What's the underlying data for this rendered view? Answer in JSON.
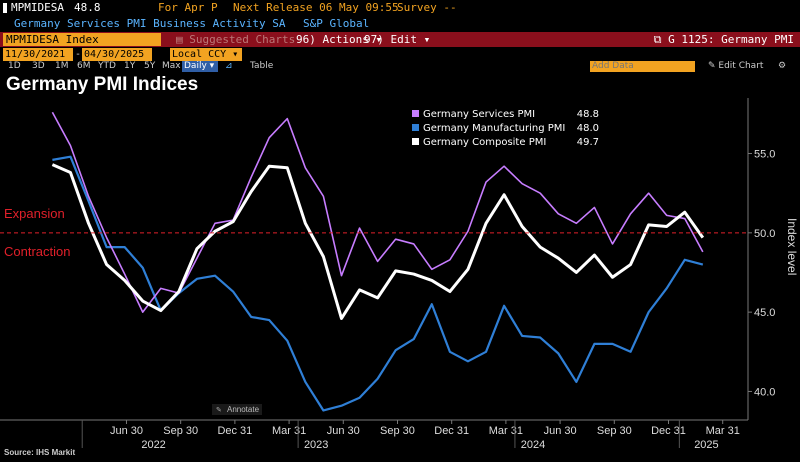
{
  "ticker_line": {
    "ticker": "MPMIDESA",
    "value": "48.8",
    "period": "For Apr P",
    "next_release": "Next Release 06 May 09:55",
    "survey": "Survey --"
  },
  "subtitle": {
    "description": "Germany Services PMI Business Activity SA",
    "source": "S&P Global"
  },
  "toolbar": {
    "security": "MPMIDESA Index",
    "suggested": "Suggested Charts",
    "actions": "96) Actions",
    "edit": "97) Edit",
    "function": "G 1125: Germany PMI",
    "currency": "Local CCY",
    "start_date": "11/30/2021",
    "end_date": "04/30/2025",
    "periods": [
      "1D",
      "3D",
      "1M",
      "6M",
      "YTD",
      "1Y",
      "5Y",
      "Max"
    ],
    "frequency": "Daily",
    "table": "Table",
    "add_data": "Add Data",
    "edit_chart": "Edit Chart"
  },
  "page_title": "Germany PMI Indices",
  "source": "Source: IHS Markit",
  "colors": {
    "services": "#c77dff",
    "manufacturing": "#2f7fd6",
    "composite": "#ffffff",
    "threshold": "#e0202a",
    "accent": "#f2a321",
    "bar": "#8a0f1c"
  },
  "chart_data": {
    "type": "line",
    "title": "Germany PMI Indices",
    "ylabel": "Index level",
    "ylim": [
      38.2,
      58.5
    ],
    "yticks": [
      40.0,
      45.0,
      50.0,
      55.0
    ],
    "xlim": [
      0,
      41.4
    ],
    "grid": false,
    "legend_position": "top-right",
    "threshold": {
      "value": 50,
      "label_above": "Expansion",
      "label_below": "Contraction"
    },
    "annotate_label": "Annotate",
    "x_ticks": [
      {
        "label": "Jun 30",
        "x": 7
      },
      {
        "label": "Sep 30",
        "x": 10
      },
      {
        "label": "Dec 31",
        "x": 13
      },
      {
        "label": "Mar 31",
        "x": 16
      },
      {
        "label": "Jun 30",
        "x": 19
      },
      {
        "label": "Sep 30",
        "x": 22
      },
      {
        "label": "Dec 31",
        "x": 25
      },
      {
        "label": "Mar 31",
        "x": 28
      },
      {
        "label": "Jun 30",
        "x": 31
      },
      {
        "label": "Sep 30",
        "x": 34
      },
      {
        "label": "Dec 31",
        "x": 37
      },
      {
        "label": "Mar 31",
        "x": 40
      }
    ],
    "year_labels": [
      {
        "label": "2022",
        "x": 8.5
      },
      {
        "label": "2023",
        "x": 17.5
      },
      {
        "label": "2024",
        "x": 29.5
      },
      {
        "label": "2025",
        "x": 39.1
      }
    ],
    "series": [
      {
        "name": "Germany Services PMI",
        "last": "48.8",
        "values": [
          57.6,
          55.5,
          52.3,
          49.7,
          47.4,
          45.0,
          46.5,
          46.2,
          48.4,
          50.6,
          50.8,
          53.5,
          56.0,
          57.2,
          54.1,
          52.3,
          47.3,
          50.3,
          48.2,
          49.6,
          49.3,
          47.7,
          48.3,
          50.1,
          53.2,
          54.2,
          53.1,
          52.5,
          51.2,
          50.6,
          51.6,
          49.3,
          51.2,
          52.5,
          51.1,
          50.9,
          48.8
        ]
      },
      {
        "name": "Germany Manufacturing PMI",
        "last": "48.0",
        "values": [
          54.6,
          54.8,
          52.0,
          49.1,
          49.1,
          47.8,
          45.1,
          46.2,
          47.1,
          47.3,
          46.3,
          44.7,
          44.5,
          43.2,
          40.6,
          38.8,
          39.1,
          39.6,
          40.8,
          42.6,
          43.3,
          45.5,
          42.5,
          41.9,
          42.5,
          45.4,
          43.5,
          43.4,
          42.4,
          40.6,
          43.0,
          43.0,
          42.5,
          45.0,
          46.5,
          48.3,
          48.0
        ]
      },
      {
        "name": "Germany Composite PMI",
        "last": "49.7",
        "values": [
          54.3,
          53.8,
          50.6,
          48.0,
          47.0,
          45.7,
          45.1,
          46.3,
          49.0,
          50.1,
          50.7,
          52.6,
          54.2,
          54.1,
          50.6,
          48.5,
          44.6,
          46.4,
          45.9,
          47.6,
          47.4,
          47.0,
          46.3,
          47.7,
          50.6,
          52.4,
          50.4,
          49.1,
          48.4,
          47.5,
          48.6,
          47.2,
          48.0,
          50.5,
          50.4,
          51.3,
          49.7
        ]
      }
    ]
  }
}
